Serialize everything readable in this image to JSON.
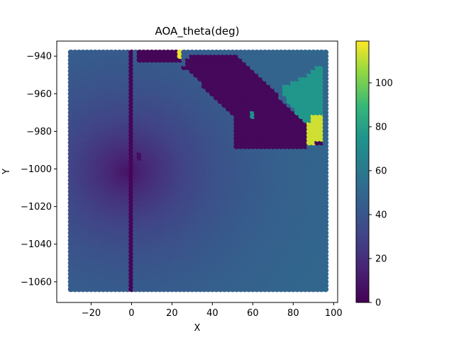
{
  "chart_data": {
    "type": "heatmap",
    "title": "AOA_theta(deg)",
    "xlabel": "X",
    "ylabel": "Y",
    "xlim": [
      -37,
      102
    ],
    "ylim": [
      -1071,
      -932
    ],
    "x_ticks": [
      -20,
      0,
      20,
      40,
      60,
      80,
      100
    ],
    "x_tick_labels": [
      "−20",
      "0",
      "20",
      "40",
      "60",
      "80",
      "100"
    ],
    "y_ticks": [
      -940,
      -960,
      -980,
      -1000,
      -1020,
      -1040,
      -1060
    ],
    "y_tick_labels": [
      "−940",
      "−960",
      "−980",
      "−1000",
      "−1020",
      "−1040",
      "−1060"
    ],
    "grid": false,
    "colormap": "viridis",
    "colorbar": {
      "range": [
        0,
        119
      ],
      "ticks": [
        0,
        20,
        40,
        60,
        80,
        100
      ],
      "tick_labels": [
        "0",
        "20",
        "40",
        "60",
        "80",
        "100"
      ]
    },
    "grid_extent": {
      "x": [
        -30,
        96
      ],
      "y": [
        -1064,
        -938
      ],
      "step": 2
    },
    "field": {
      "base_center": [
        -2,
        -1001
      ],
      "base_min_value": 8,
      "base_max_value": 53,
      "base_falloff": 0.47
    },
    "regions": [
      {
        "name": "vertical low strip",
        "shape": "rect",
        "x": [
          -1.5,
          0.5
        ],
        "y": [
          -1064,
          -938
        ],
        "value": 2
      },
      {
        "name": "low blob small",
        "shape": "ellipse",
        "center": [
          4,
          -993
        ],
        "radius": [
          1.5,
          2
        ],
        "value": 5
      },
      {
        "name": "low rect top",
        "shape": "rect",
        "x": [
          3.5,
          24
        ],
        "y": [
          -942,
          -938
        ],
        "value": 2
      },
      {
        "name": "high spot top",
        "shape": "ellipse",
        "center": [
          24,
          -938.5
        ],
        "radius": [
          1.5,
          1.5
        ],
        "value": 117
      },
      {
        "name": "low polygon",
        "shape": "polygon",
        "points": [
          [
            28,
            -941
          ],
          [
            34,
            -938
          ],
          [
            52,
            -938
          ],
          [
            96,
            -986
          ],
          [
            87,
            -988
          ],
          [
            52,
            -988
          ],
          [
            52,
            -972
          ],
          [
            36,
            -956
          ],
          [
            30,
            -948
          ],
          [
            26,
            -946
          ]
        ],
        "value": 3
      },
      {
        "name": "mid triangle",
        "shape": "polygon",
        "points": [
          [
            54,
            -938
          ],
          [
            96,
            -938
          ],
          [
            96,
            -944
          ],
          [
            86,
            -950
          ],
          [
            76,
            -954
          ],
          [
            70,
            -955
          ],
          [
            60,
            -946
          ]
        ],
        "value": 48
      },
      {
        "name": "green region",
        "shape": "polygon",
        "points": [
          [
            76,
            -956
          ],
          [
            86,
            -951
          ],
          [
            93,
            -945
          ],
          [
            96,
            -945
          ],
          [
            96,
            -970
          ],
          [
            92,
            -970
          ],
          [
            88,
            -976
          ],
          [
            82,
            -970
          ],
          [
            75,
            -960
          ]
        ],
        "value": 76
      },
      {
        "name": "green spots",
        "shape": "ellipse",
        "center": [
          59.5,
          -971
        ],
        "radius": [
          1.5,
          1.5
        ],
        "value": 72
      },
      {
        "name": "low spot",
        "shape": "ellipse",
        "center": [
          59,
          -965
        ],
        "radius": [
          1.3,
          1.3
        ],
        "value": 30
      },
      {
        "name": "yellow region",
        "shape": "polygon",
        "points": [
          [
            87,
            -977
          ],
          [
            91,
            -970
          ],
          [
            96,
            -970
          ],
          [
            96,
            -985
          ],
          [
            91,
            -986
          ],
          [
            87,
            -986
          ]
        ],
        "value": 113
      }
    ]
  }
}
